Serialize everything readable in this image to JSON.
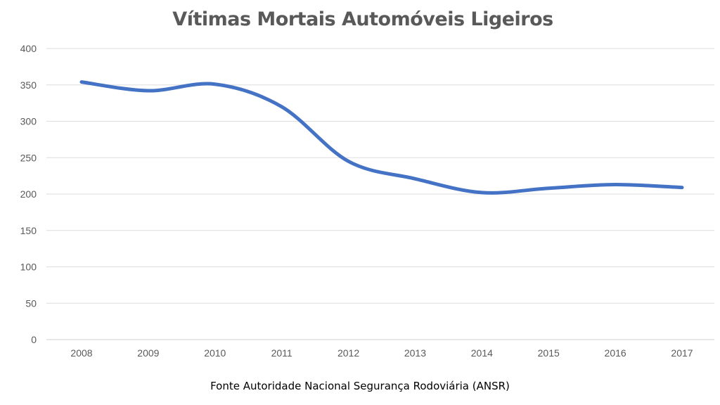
{
  "chart_data": {
    "type": "line",
    "title": "Vítimas Mortais Automóveis Ligeiros",
    "xlabel": "",
    "ylabel": "",
    "categories": [
      "2008",
      "2009",
      "2010",
      "2011",
      "2012",
      "2013",
      "2014",
      "2015",
      "2016",
      "2017"
    ],
    "series": [
      {
        "values": [
          354,
          342,
          351,
          320,
          245,
          221,
          202,
          208,
          213,
          209
        ],
        "color": "#4472C4",
        "smooth": true
      }
    ],
    "ylim": [
      0,
      400
    ],
    "yticks": [
      0,
      50,
      100,
      150,
      200,
      250,
      300,
      350,
      400
    ],
    "grid": true,
    "legend": "none"
  },
  "footer": {
    "source": "Fonte Autoridade Nacional Segurança Rodoviária (ANSR)"
  }
}
